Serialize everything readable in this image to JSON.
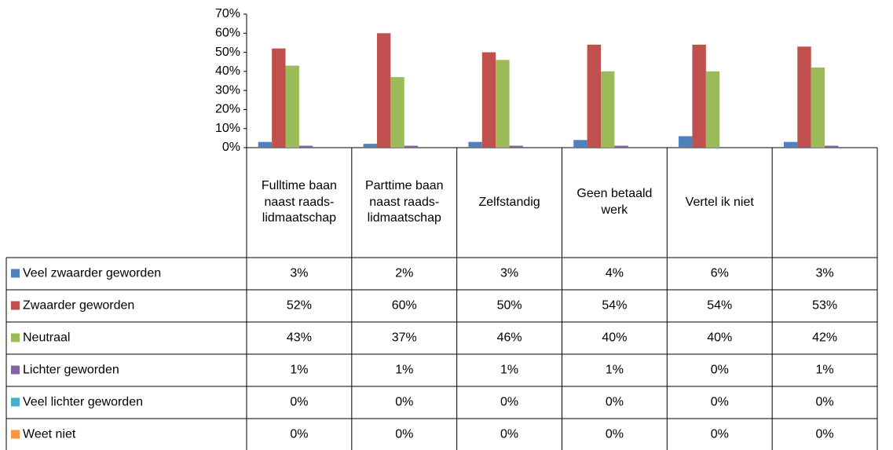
{
  "chart_data": {
    "type": "bar",
    "categories": [
      "Fulltime baan naast raads-lidmaatschap",
      "Parttime baan naast raads-lidmaatschap",
      "Zelfstandig",
      "Geen betaald werk",
      "Vertel ik niet",
      null
    ],
    "series": [
      {
        "name": "Veel zwaarder geworden",
        "color": "#4f81bd",
        "values": [
          3,
          2,
          3,
          4,
          6,
          3
        ],
        "value_labels": [
          "3%",
          "2%",
          "3%",
          "4%",
          "6%",
          "3%"
        ]
      },
      {
        "name": "Zwaarder geworden",
        "color": "#c0504d",
        "values": [
          52,
          60,
          50,
          54,
          54,
          53
        ],
        "value_labels": [
          "52%",
          "60%",
          "50%",
          "54%",
          "54%",
          "53%"
        ]
      },
      {
        "name": "Neutraal",
        "color": "#9bbb59",
        "values": [
          43,
          37,
          46,
          40,
          40,
          42
        ],
        "value_labels": [
          "43%",
          "37%",
          "46%",
          "40%",
          "40%",
          "42%"
        ]
      },
      {
        "name": "Lichter geworden",
        "color": "#8064a2",
        "values": [
          1,
          1,
          1,
          1,
          0,
          1
        ],
        "value_labels": [
          "1%",
          "1%",
          "1%",
          "1%",
          "0%",
          "1%"
        ]
      },
      {
        "name": "Veel lichter geworden",
        "color": "#4bacc6",
        "values": [
          0,
          0,
          0,
          0,
          0,
          0
        ],
        "value_labels": [
          "0%",
          "0%",
          "0%",
          "0%",
          "0%",
          "0%"
        ]
      },
      {
        "name": "Weet niet",
        "color": "#f79646",
        "values": [
          0,
          0,
          0,
          0,
          0,
          0
        ],
        "value_labels": [
          "0%",
          "0%",
          "0%",
          "0%",
          "0%",
          "0%"
        ]
      }
    ],
    "ylim": [
      0,
      70
    ],
    "yticks": [
      {
        "value": 0,
        "label": "0%"
      },
      {
        "value": 10,
        "label": "10%"
      },
      {
        "value": 20,
        "label": "20%"
      },
      {
        "value": 30,
        "label": "30%"
      },
      {
        "value": 40,
        "label": "40%"
      },
      {
        "value": 50,
        "label": "50%"
      },
      {
        "value": 60,
        "label": "60%"
      },
      {
        "value": 70,
        "label": "70%"
      }
    ]
  }
}
